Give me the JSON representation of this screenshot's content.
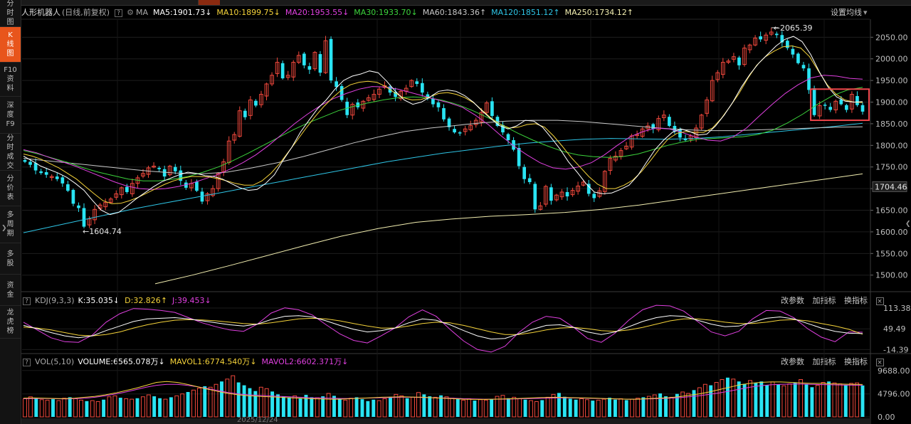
{
  "left_nav": [
    {
      "label": "分时图",
      "active": false
    },
    {
      "label": "K线图",
      "active": true
    },
    {
      "label": "F10资料",
      "active": false
    },
    {
      "label": "深度F9",
      "active": false
    },
    {
      "label": "分时成交",
      "active": false
    },
    {
      "label": "分价表",
      "active": false
    },
    {
      "label": "多周期",
      "active": false
    },
    {
      "label": "多股",
      "active": false
    },
    {
      "label": "资金",
      "active": false
    },
    {
      "label": "龙虎榜",
      "active": false
    }
  ],
  "header": {
    "name": "人形机器人",
    "mode": "(日线,前复权)",
    "help": "?",
    "ma_label": "MA",
    "ma_items": [
      {
        "text": "MA5:1901.73",
        "arrow": "↓",
        "color": "#ffffff"
      },
      {
        "text": "MA10:1899.75",
        "arrow": "↓",
        "color": "#f5d33a"
      },
      {
        "text": "MA20:1953.55",
        "arrow": "↓",
        "color": "#e040e0"
      },
      {
        "text": "MA30:1933.70",
        "arrow": "↓",
        "color": "#3cd33c"
      },
      {
        "text": "MA60:1843.36",
        "arrow": "↑",
        "color": "#c8c8c8"
      },
      {
        "text": "MA120:1851.12",
        "arrow": "↑",
        "color": "#2ec5e6"
      },
      {
        "text": "MA250:1734.12",
        "arrow": "↑",
        "color": "#f2eeb0"
      }
    ],
    "settings_label": "设置均线",
    "settings_arrow": "▾"
  },
  "kdj": {
    "label": "KDJ(9,3,3)",
    "k": "K:35.035",
    "k_arrow": "↓",
    "d": "D:32.826",
    "d_arrow": "↑",
    "j": "J:39.453",
    "j_arrow": "↓",
    "links": [
      "改参数",
      "加指标",
      "换指标"
    ]
  },
  "vol": {
    "label": "VOL(5,10)",
    "volume": "VOLUME:6565.078万",
    "volume_arrow": "↓",
    "mavol1": "MAVOL1:6774.540万",
    "mavol1_arrow": "↓",
    "mavol2": "MAVOL2:6602.371万",
    "mavol2_arrow": "↓",
    "links": [
      "改参数",
      "加指标",
      "换指标"
    ]
  },
  "price_axis": {
    "ticks": [
      "2050.00",
      "2000.00",
      "1950.00",
      "1900.00",
      "1850.00",
      "1800.00",
      "1750.00",
      "1700.00",
      "1650.00",
      "1600.00",
      "1550.00",
      "1500.00"
    ],
    "current": "1704.46"
  },
  "kdj_axis": {
    "ticks": [
      "113.38",
      "49.49",
      "-14.39"
    ]
  },
  "vol_axis": {
    "ticks": [
      "9688.00",
      "4796.00",
      "0.00"
    ]
  },
  "x_axis": {
    "date_label": "2025/12/24"
  },
  "colors": {
    "up": "#f0483c",
    "down": "#29e4f3",
    "highlight_box": "#f0454b",
    "ma5": "#ffffff",
    "ma10": "#f5d33a",
    "ma20": "#e040e0",
    "ma30": "#3cd33c",
    "ma60": "#c8c8c8",
    "ma120": "#2ec5e6",
    "ma250": "#f2eeb0"
  },
  "chart_data": {
    "type": "candlestick",
    "title": "人形机器人 (日线,前复权)",
    "ylim": [
      1465,
      2090
    ],
    "grid": true,
    "annotations": [
      {
        "text": "2065.39",
        "value": 2065.39,
        "type": "max"
      },
      {
        "text": "1604.74",
        "value": 1604.74,
        "type": "min"
      }
    ],
    "highlight_last_n": 10,
    "candles_close": [
      1762,
      1755,
      1742,
      1736,
      1732,
      1728,
      1722,
      1712,
      1695,
      1665,
      1655,
      1612,
      1630,
      1652,
      1662,
      1668,
      1676,
      1688,
      1702,
      1692,
      1712,
      1725,
      1735,
      1748,
      1752,
      1745,
      1728,
      1752,
      1740,
      1718,
      1702,
      1712,
      1695,
      1670,
      1688,
      1700,
      1735,
      1762,
      1810,
      1825,
      1880,
      1865,
      1905,
      1892,
      1918,
      1942,
      1962,
      1992,
      1955,
      1962,
      1992,
      2008,
      1985,
      1975,
      2015,
      1968,
      2042,
      1950,
      1935,
      1905,
      1870,
      1895,
      1888,
      1902,
      1910,
      1918,
      1930,
      1938,
      1922,
      1912,
      1925,
      1932,
      1950,
      1942,
      1922,
      1908,
      1895,
      1888,
      1860,
      1842,
      1830,
      1828,
      1838,
      1846,
      1858,
      1876,
      1898,
      1868,
      1845,
      1830,
      1812,
      1790,
      1752,
      1722,
      1715,
      1652,
      1660,
      1705,
      1672,
      1685,
      1692,
      1682,
      1696,
      1706,
      1715,
      1688,
      1678,
      1695,
      1740,
      1770,
      1775,
      1788,
      1798,
      1822,
      1825,
      1838,
      1845,
      1838,
      1862,
      1870,
      1845,
      1832,
      1818,
      1812,
      1822,
      1840,
      1870,
      1905,
      1950,
      1968,
      1992,
      1995,
      2005,
      1985,
      2025,
      2032,
      2048,
      2045,
      2055,
      2062,
      2055,
      2038,
      2025,
      2010,
      1990,
      1978,
      1928,
      1870,
      1892,
      1893,
      1882,
      1902,
      1895,
      1882,
      1918,
      1893,
      1878
    ],
    "ma_series": {
      "ma5": [
        1775,
        1764,
        1752,
        1744,
        1736,
        1726,
        1712,
        1696,
        1672,
        1650,
        1640,
        1645,
        1660,
        1676,
        1690,
        1704,
        1716,
        1724,
        1732,
        1738,
        1735,
        1730,
        1728,
        1722,
        1712,
        1702,
        1696,
        1698,
        1712,
        1732,
        1765,
        1795,
        1830,
        1858,
        1885,
        1905,
        1930,
        1950,
        1960,
        1965,
        1972,
        1968,
        1948,
        1925,
        1905,
        1895,
        1900,
        1912,
        1925,
        1928,
        1925,
        1915,
        1900,
        1880,
        1862,
        1846,
        1838,
        1845,
        1858,
        1856,
        1842,
        1818,
        1792,
        1762,
        1738,
        1712,
        1692,
        1688,
        1690,
        1698,
        1708,
        1730,
        1760,
        1790,
        1812,
        1830,
        1838,
        1832,
        1824,
        1826,
        1845,
        1870,
        1900,
        1935,
        1965,
        1990,
        2010,
        2030,
        2045,
        2052,
        2040,
        2010,
        1970,
        1935,
        1912,
        1902,
        1900,
        1901
      ],
      "ma10": [
        1780,
        1775,
        1768,
        1758,
        1748,
        1735,
        1722,
        1705,
        1688,
        1672,
        1665,
        1666,
        1672,
        1680,
        1690,
        1700,
        1710,
        1718,
        1724,
        1728,
        1728,
        1727,
        1723,
        1718,
        1712,
        1708,
        1708,
        1718,
        1735,
        1758,
        1785,
        1812,
        1840,
        1866,
        1890,
        1910,
        1928,
        1940,
        1946,
        1948,
        1946,
        1936,
        1922,
        1910,
        1905,
        1906,
        1912,
        1920,
        1922,
        1918,
        1910,
        1898,
        1880,
        1862,
        1848,
        1840,
        1842,
        1848,
        1850,
        1842,
        1822,
        1798,
        1772,
        1750,
        1728,
        1710,
        1700,
        1700,
        1708,
        1720,
        1740,
        1765,
        1792,
        1815,
        1828,
        1832,
        1830,
        1830,
        1840,
        1862,
        1890,
        1920,
        1955,
        1985,
        2005,
        2018,
        2028,
        2030,
        2025,
        2005,
        1972,
        1940,
        1918,
        1905,
        1900,
        1899
      ],
      "ma20": [
        1790,
        1783,
        1772,
        1762,
        1752,
        1740,
        1728,
        1716,
        1706,
        1700,
        1698,
        1700,
        1705,
        1712,
        1722,
        1732,
        1745,
        1760,
        1778,
        1800,
        1825,
        1850,
        1872,
        1892,
        1908,
        1920,
        1930,
        1936,
        1935,
        1930,
        1922,
        1914,
        1906,
        1898,
        1888,
        1870,
        1848,
        1822,
        1798,
        1778,
        1760,
        1748,
        1745,
        1750,
        1760,
        1778,
        1800,
        1820,
        1832,
        1840,
        1838,
        1830,
        1820,
        1812,
        1810,
        1820,
        1840,
        1868,
        1895,
        1920,
        1940,
        1956,
        1962,
        1960,
        1955,
        1953
      ],
      "ma30": [
        1788,
        1780,
        1770,
        1760,
        1748,
        1738,
        1730,
        1722,
        1718,
        1718,
        1722,
        1728,
        1738,
        1750,
        1765,
        1782,
        1800,
        1818,
        1836,
        1852,
        1866,
        1880,
        1890,
        1898,
        1905,
        1910,
        1912,
        1910,
        1904,
        1894,
        1880,
        1864,
        1846,
        1828,
        1812,
        1798,
        1786,
        1778,
        1774,
        1772,
        1774,
        1780,
        1790,
        1800,
        1808,
        1814,
        1816,
        1818,
        1820,
        1825,
        1835,
        1852,
        1872,
        1895,
        1915,
        1928,
        1934
      ],
      "ma60": [
        1770,
        1764,
        1758,
        1752,
        1746,
        1740,
        1736,
        1734,
        1738,
        1748,
        1760,
        1774,
        1790,
        1806,
        1820,
        1832,
        1840,
        1846,
        1852,
        1856,
        1858,
        1858,
        1855,
        1850,
        1845,
        1840,
        1836,
        1834,
        1834,
        1836,
        1838,
        1840,
        1842,
        1843
      ],
      "ma120": [
        1598,
        1612,
        1626,
        1640,
        1654,
        1666,
        1678,
        1690,
        1702,
        1714,
        1726,
        1738,
        1750,
        1762,
        1772,
        1782,
        1790,
        1798,
        1805,
        1810,
        1814,
        1816,
        1815,
        1814,
        1816,
        1820,
        1826,
        1832,
        1838,
        1844,
        1851
      ],
      "ma250": [
        1480,
        1500,
        1522,
        1545,
        1568,
        1590,
        1608,
        1622,
        1630,
        1636,
        1640,
        1645,
        1652,
        1662,
        1674,
        1686,
        1698,
        1710,
        1722,
        1734
      ]
    },
    "kdj_series": {
      "k": [
        60,
        50,
        38,
        28,
        22,
        28,
        44,
        58,
        72,
        80,
        82,
        84,
        80,
        74,
        68,
        62,
        58,
        64,
        78,
        88,
        90,
        86,
        74,
        60,
        48,
        40,
        44,
        52,
        68,
        80,
        76,
        62,
        44,
        28,
        18,
        20,
        34,
        48,
        60,
        62,
        54,
        40,
        32,
        40,
        56,
        72,
        84,
        90,
        88,
        76,
        64,
        56,
        58,
        70,
        82,
        86,
        80,
        66,
        52,
        42,
        36,
        35
      ],
      "d": [
        55,
        52,
        46,
        38,
        30,
        28,
        32,
        40,
        52,
        62,
        70,
        76,
        78,
        77,
        74,
        70,
        66,
        64,
        68,
        74,
        80,
        82,
        80,
        74,
        66,
        58,
        52,
        52,
        58,
        66,
        70,
        68,
        60,
        50,
        40,
        32,
        32,
        38,
        46,
        52,
        54,
        50,
        44,
        42,
        46,
        54,
        64,
        74,
        80,
        80,
        76,
        70,
        66,
        66,
        70,
        76,
        78,
        74,
        66,
        58,
        48,
        33
      ],
      "j": [
        70,
        46,
        22,
        10,
        8,
        30,
        70,
        96,
        112,
        110,
        106,
        100,
        84,
        68,
        56,
        46,
        42,
        64,
        98,
        114,
        108,
        92,
        62,
        34,
        14,
        6,
        28,
        52,
        86,
        108,
        88,
        48,
        12,
        -14,
        -22,
        -4,
        38,
        70,
        88,
        82,
        54,
        20,
        8,
        36,
        76,
        108,
        122,
        120,
        104,
        72,
        40,
        28,
        42,
        80,
        106,
        104,
        84,
        50,
        24,
        10,
        40,
        39
      ]
    },
    "volume_series": {
      "values": [
        3800,
        4200,
        3900,
        3600,
        3500,
        3700,
        3400,
        3900,
        4100,
        3800,
        3500,
        3300,
        3400,
        3200,
        3600,
        4200,
        4400,
        4000,
        3800,
        3700,
        3900,
        4200,
        4600,
        4300,
        3900,
        3700,
        4100,
        4400,
        4800,
        5200,
        5600,
        6000,
        6400,
        6200,
        6800,
        7400,
        7900,
        8600,
        7200,
        6600,
        6000,
        5400,
        6200,
        5900,
        5300,
        4700,
        4300,
        4100,
        4400,
        3900,
        4600,
        4100,
        4000,
        4300,
        4900,
        4400,
        3800,
        3500,
        3900,
        4100,
        3700,
        3300,
        3600,
        3400,
        3800,
        4200,
        4700,
        4400,
        3900,
        4100,
        5100,
        4700,
        4300,
        4100,
        4500,
        4200,
        3900,
        3700,
        3500,
        3800,
        3400,
        3600,
        3500,
        3700,
        4300,
        4500,
        3900,
        4100,
        3800,
        3600,
        3400,
        3200,
        3500,
        4100,
        4700,
        5000,
        4200,
        3800,
        3600,
        3800,
        3600,
        3400,
        3500,
        3700,
        4000,
        3600,
        3800,
        3500,
        3700,
        3900,
        4100,
        4300,
        4600,
        4900,
        4300,
        4100,
        4800,
        5200,
        4900,
        5600,
        6100,
        6800,
        6600,
        7200,
        7800,
        8200,
        7900,
        7400,
        6900,
        7600,
        7100,
        7400,
        6600,
        7300,
        6800,
        6500,
        6900,
        7200,
        7800,
        6900,
        6200,
        6600,
        7200,
        7400,
        7100,
        6900,
        6700,
        7000,
        7100,
        6565
      ],
      "mavol1": [
        3900,
        3950,
        3900,
        3850,
        3800,
        3900,
        4100,
        4300,
        4600,
        5000,
        5500,
        6000,
        6600,
        7200,
        7400,
        7200,
        6800,
        6300,
        5800,
        5300,
        4900,
        4600,
        4400,
        4300,
        4200,
        4100,
        4000,
        3900,
        3800,
        3750,
        3700,
        3700,
        3800,
        3900,
        4000,
        4100,
        4150,
        4200,
        4150,
        4100,
        4000,
        3900,
        3800,
        3700,
        3650,
        3650,
        3700,
        3750,
        3800,
        3900,
        4000,
        4050,
        4100,
        4050,
        4000,
        3950,
        3900,
        3800,
        3750,
        3700,
        3700,
        3800,
        3900,
        4000,
        4200,
        4500,
        4800,
        5200,
        5700,
        6200,
        6700,
        7000,
        7200,
        7300,
        7300,
        7200,
        7100,
        7000,
        7000,
        6900,
        6850,
        6800,
        6775
      ],
      "mavol2": [
        3800,
        3850,
        3850,
        3800,
        3750,
        3800,
        3900,
        4100,
        4400,
        4800,
        5200,
        5700,
        6200,
        6600,
        6800,
        6800,
        6600,
        6300,
        5900,
        5500,
        5100,
        4800,
        4600,
        4500,
        4400,
        4300,
        4200,
        4100,
        4000,
        3950,
        3900,
        3850,
        3850,
        3900,
        3950,
        4000,
        4050,
        4100,
        4100,
        4050,
        4000,
        3950,
        3900,
        3800,
        3750,
        3700,
        3700,
        3700,
        3750,
        3800,
        3850,
        3900,
        3950,
        3950,
        3950,
        3900,
        3850,
        3800,
        3750,
        3700,
        3700,
        3750,
        3800,
        3900,
        4000,
        4200,
        4400,
        4700,
        5000,
        5400,
        5800,
        6200,
        6500,
        6700,
        6800,
        6850,
        6850,
        6800,
        6750,
        6700,
        6650,
        6620,
        6602
      ]
    }
  }
}
